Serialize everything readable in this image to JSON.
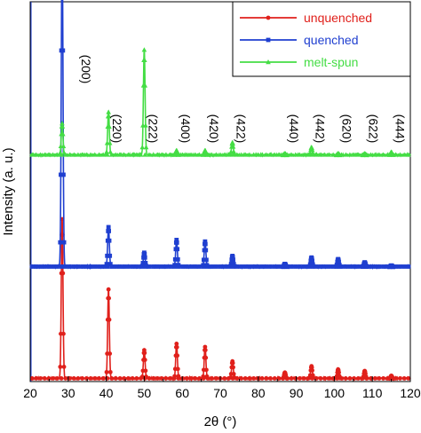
{
  "chart_data": {
    "type": "line",
    "xlabel": "2θ (°)",
    "ylabel": "Intensity (a. u.)",
    "xlim": [
      20,
      120
    ],
    "xticks": [
      20,
      30,
      40,
      50,
      60,
      70,
      80,
      90,
      100,
      110,
      120
    ],
    "legend_position": "top-right",
    "series": [
      {
        "name": "unquenched",
        "color": "#e0201b",
        "marker": "circle",
        "offset": 0,
        "peaks": [
          {
            "x": 28.4,
            "y": 100
          },
          {
            "x": 40.6,
            "y": 56
          },
          {
            "x": 50.0,
            "y": 18
          },
          {
            "x": 58.5,
            "y": 22
          },
          {
            "x": 66.0,
            "y": 20
          },
          {
            "x": 73.2,
            "y": 11
          },
          {
            "x": 87.0,
            "y": 4
          },
          {
            "x": 94.0,
            "y": 8
          },
          {
            "x": 101.0,
            "y": 6
          },
          {
            "x": 108.0,
            "y": 5
          },
          {
            "x": 115.0,
            "y": 2
          }
        ]
      },
      {
        "name": "quenched",
        "color": "#1f3fd0",
        "marker": "square",
        "offset": 70,
        "peaks": [
          {
            "x": 28.4,
            "y": 205
          },
          {
            "x": 40.6,
            "y": 25
          },
          {
            "x": 50.0,
            "y": 9
          },
          {
            "x": 58.5,
            "y": 17
          },
          {
            "x": 66.0,
            "y": 16
          },
          {
            "x": 73.2,
            "y": 7
          },
          {
            "x": 87.0,
            "y": 2
          },
          {
            "x": 94.0,
            "y": 6
          },
          {
            "x": 101.0,
            "y": 5
          },
          {
            "x": 108.0,
            "y": 3
          },
          {
            "x": 115.0,
            "y": 1
          }
        ]
      },
      {
        "name": "melt-spun",
        "color": "#44dd44",
        "marker": "triangle",
        "offset": 140,
        "peaks": [
          {
            "x": 28.4,
            "y": 20
          },
          {
            "x": 40.6,
            "y": 27
          },
          {
            "x": 50.0,
            "y": 66
          },
          {
            "x": 58.5,
            "y": 3
          },
          {
            "x": 66.0,
            "y": 3
          },
          {
            "x": 73.2,
            "y": 8
          },
          {
            "x": 87.0,
            "y": 1
          },
          {
            "x": 94.0,
            "y": 5
          },
          {
            "x": 101.0,
            "y": 1
          },
          {
            "x": 108.0,
            "y": 1
          },
          {
            "x": 115.0,
            "y": 2
          }
        ]
      }
    ],
    "annotations": [
      {
        "label": "(200)",
        "x": 28.4
      },
      {
        "label": "(220)",
        "x": 40.6
      },
      {
        "label": "(222)",
        "x": 50.0
      },
      {
        "label": "(400)",
        "x": 58.5
      },
      {
        "label": "(420)",
        "x": 66.0
      },
      {
        "label": "(422)",
        "x": 73.2
      },
      {
        "label": "(440)",
        "x": 87.0
      },
      {
        "label": "(442)",
        "x": 94.0
      },
      {
        "label": "(620)",
        "x": 101.0
      },
      {
        "label": "(622)",
        "x": 108.0
      },
      {
        "label": "(444)",
        "x": 115.0
      }
    ]
  }
}
